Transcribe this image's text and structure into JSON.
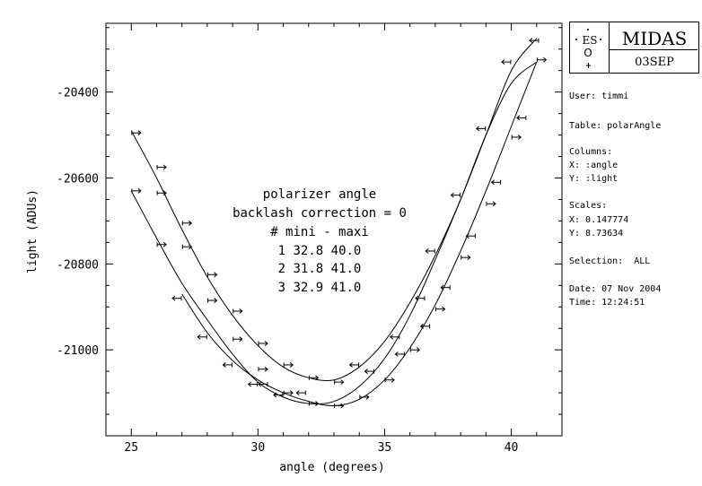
{
  "chart_data": {
    "type": "scatter",
    "title": "",
    "xlabel": "angle (degrees)",
    "ylabel": "light (ADUs)",
    "xlim": [
      24,
      42
    ],
    "ylim": [
      -21200,
      -20240
    ],
    "x_ticks": [
      25,
      30,
      35,
      40
    ],
    "y_ticks": [
      -20400,
      -20600,
      -20800,
      -21000
    ],
    "y_tick_labels": [
      "-20400",
      "-20600",
      "-20800",
      "-21000"
    ],
    "annotation": {
      "lines": [
        "polarizer angle",
        "backlash correction = 0",
        "# mini - maxi",
        "1 32.8 40.0",
        "2 31.8 41.0",
        "3 32.9 41.0"
      ]
    },
    "series": [
      {
        "curve": [
          [
            25,
            -20490
          ],
          [
            26,
            -20600
          ],
          [
            27,
            -20720
          ],
          [
            28,
            -20830
          ],
          [
            29,
            -20920
          ],
          [
            30,
            -20990
          ],
          [
            31,
            -21040
          ],
          [
            32,
            -21065
          ],
          [
            33,
            -21070
          ],
          [
            34,
            -21040
          ],
          [
            35,
            -20980
          ],
          [
            36,
            -20890
          ],
          [
            37,
            -20780
          ],
          [
            38,
            -20650
          ],
          [
            39,
            -20500
          ],
          [
            40,
            -20350
          ],
          [
            41,
            -20275
          ]
        ],
        "points": [
          {
            "x": 25.2,
            "y": -20495,
            "dir": "right"
          },
          {
            "x": 26.2,
            "y": -20575,
            "dir": "right"
          },
          {
            "x": 26.2,
            "y": -20635,
            "dir": "right"
          },
          {
            "x": 27.2,
            "y": -20705,
            "dir": "right"
          },
          {
            "x": 28.2,
            "y": -20825,
            "dir": "right"
          },
          {
            "x": 29.2,
            "y": -20910,
            "dir": "right"
          },
          {
            "x": 30.2,
            "y": -20985,
            "dir": "right"
          },
          {
            "x": 31.2,
            "y": -21035,
            "dir": "right"
          },
          {
            "x": 32.2,
            "y": -21065,
            "dir": "right"
          },
          {
            "x": 33.2,
            "y": -21075,
            "dir": "right"
          },
          {
            "x": 33.8,
            "y": -21035,
            "dir": "left"
          },
          {
            "x": 35.4,
            "y": -20970,
            "dir": "left"
          },
          {
            "x": 36.4,
            "y": -20880,
            "dir": "left"
          },
          {
            "x": 36.8,
            "y": -20770,
            "dir": "left"
          },
          {
            "x": 37.8,
            "y": -20640,
            "dir": "left"
          },
          {
            "x": 38.8,
            "y": -20485,
            "dir": "left"
          },
          {
            "x": 39.8,
            "y": -20330,
            "dir": "left"
          },
          {
            "x": 40.9,
            "y": -20280,
            "dir": "left"
          }
        ]
      },
      {
        "curve": [
          [
            25,
            -20630
          ],
          [
            26,
            -20740
          ],
          [
            27,
            -20845
          ],
          [
            28,
            -20930
          ],
          [
            29,
            -21010
          ],
          [
            30,
            -21075
          ],
          [
            31,
            -21110
          ],
          [
            32,
            -21125
          ],
          [
            33,
            -21120
          ],
          [
            34,
            -21085
          ],
          [
            35,
            -21020
          ],
          [
            36,
            -20920
          ],
          [
            37,
            -20790
          ],
          [
            38,
            -20650
          ],
          [
            39,
            -20500
          ],
          [
            40,
            -20380
          ],
          [
            41,
            -20330
          ]
        ],
        "points": [
          {
            "x": 25.2,
            "y": -20630,
            "dir": "right"
          },
          {
            "x": 26.2,
            "y": -20755,
            "dir": "right"
          },
          {
            "x": 27.2,
            "y": -20760,
            "dir": "right"
          },
          {
            "x": 28.2,
            "y": -20885,
            "dir": "right"
          },
          {
            "x": 29.2,
            "y": -20975,
            "dir": "right"
          },
          {
            "x": 30.2,
            "y": -21045,
            "dir": "right"
          },
          {
            "x": 31.2,
            "y": -21100,
            "dir": "right"
          },
          {
            "x": 32.2,
            "y": -21125,
            "dir": "right"
          },
          {
            "x": 31.7,
            "y": -21100,
            "dir": "left"
          },
          {
            "x": 30.2,
            "y": -21080,
            "dir": "left"
          },
          {
            "x": 34.4,
            "y": -21050,
            "dir": "left"
          },
          {
            "x": 35.6,
            "y": -21010,
            "dir": "left"
          },
          {
            "x": 36.6,
            "y": -20945,
            "dir": "left"
          },
          {
            "x": 37.4,
            "y": -20855,
            "dir": "left"
          },
          {
            "x": 38.4,
            "y": -20735,
            "dir": "left"
          },
          {
            "x": 39.4,
            "y": -20610,
            "dir": "left"
          },
          {
            "x": 40.4,
            "y": -20460,
            "dir": "left"
          }
        ]
      },
      {
        "curve": [
          [
            27,
            -20870
          ],
          [
            28,
            -20960
          ],
          [
            29,
            -21025
          ],
          [
            30,
            -21070
          ],
          [
            31,
            -21100
          ],
          [
            32,
            -21120
          ],
          [
            33,
            -21130
          ],
          [
            34,
            -21115
          ],
          [
            35,
            -21070
          ],
          [
            36,
            -20995
          ],
          [
            37,
            -20895
          ],
          [
            38,
            -20770
          ],
          [
            39,
            -20630
          ],
          [
            40,
            -20480
          ],
          [
            41,
            -20330
          ]
        ],
        "points": [
          {
            "x": 26.8,
            "y": -20880,
            "dir": "left"
          },
          {
            "x": 27.8,
            "y": -20970,
            "dir": "left"
          },
          {
            "x": 28.8,
            "y": -21035,
            "dir": "left"
          },
          {
            "x": 29.8,
            "y": -21080,
            "dir": "left"
          },
          {
            "x": 30.8,
            "y": -21105,
            "dir": "left"
          },
          {
            "x": 33.2,
            "y": -21130,
            "dir": "right"
          },
          {
            "x": 34.2,
            "y": -21110,
            "dir": "right"
          },
          {
            "x": 35.2,
            "y": -21070,
            "dir": "right"
          },
          {
            "x": 36.2,
            "y": -21000,
            "dir": "right"
          },
          {
            "x": 37.2,
            "y": -20905,
            "dir": "right"
          },
          {
            "x": 38.2,
            "y": -20785,
            "dir": "right"
          },
          {
            "x": 39.2,
            "y": -20660,
            "dir": "right"
          },
          {
            "x": 40.2,
            "y": -20505,
            "dir": "right"
          },
          {
            "x": 41.2,
            "y": -20325,
            "dir": "right"
          }
        ]
      }
    ]
  },
  "logo": {
    "org_text": "ES",
    "letter": "O",
    "app_name": "MIDAS",
    "date_code": "03SEP"
  },
  "info": {
    "user": "User: timmi",
    "table": "Table: polarAngle",
    "columns_header": "Columns:",
    "x_column": "X: :angle",
    "y_column": "Y: :light",
    "scales_header": "Scales:",
    "x_scale": "X: 0.147774",
    "y_scale": "Y: 8.73634",
    "selection": "Selection:  ALL",
    "date": "Date: 07 Nov 2004",
    "time": "Time: 12:24:51"
  }
}
